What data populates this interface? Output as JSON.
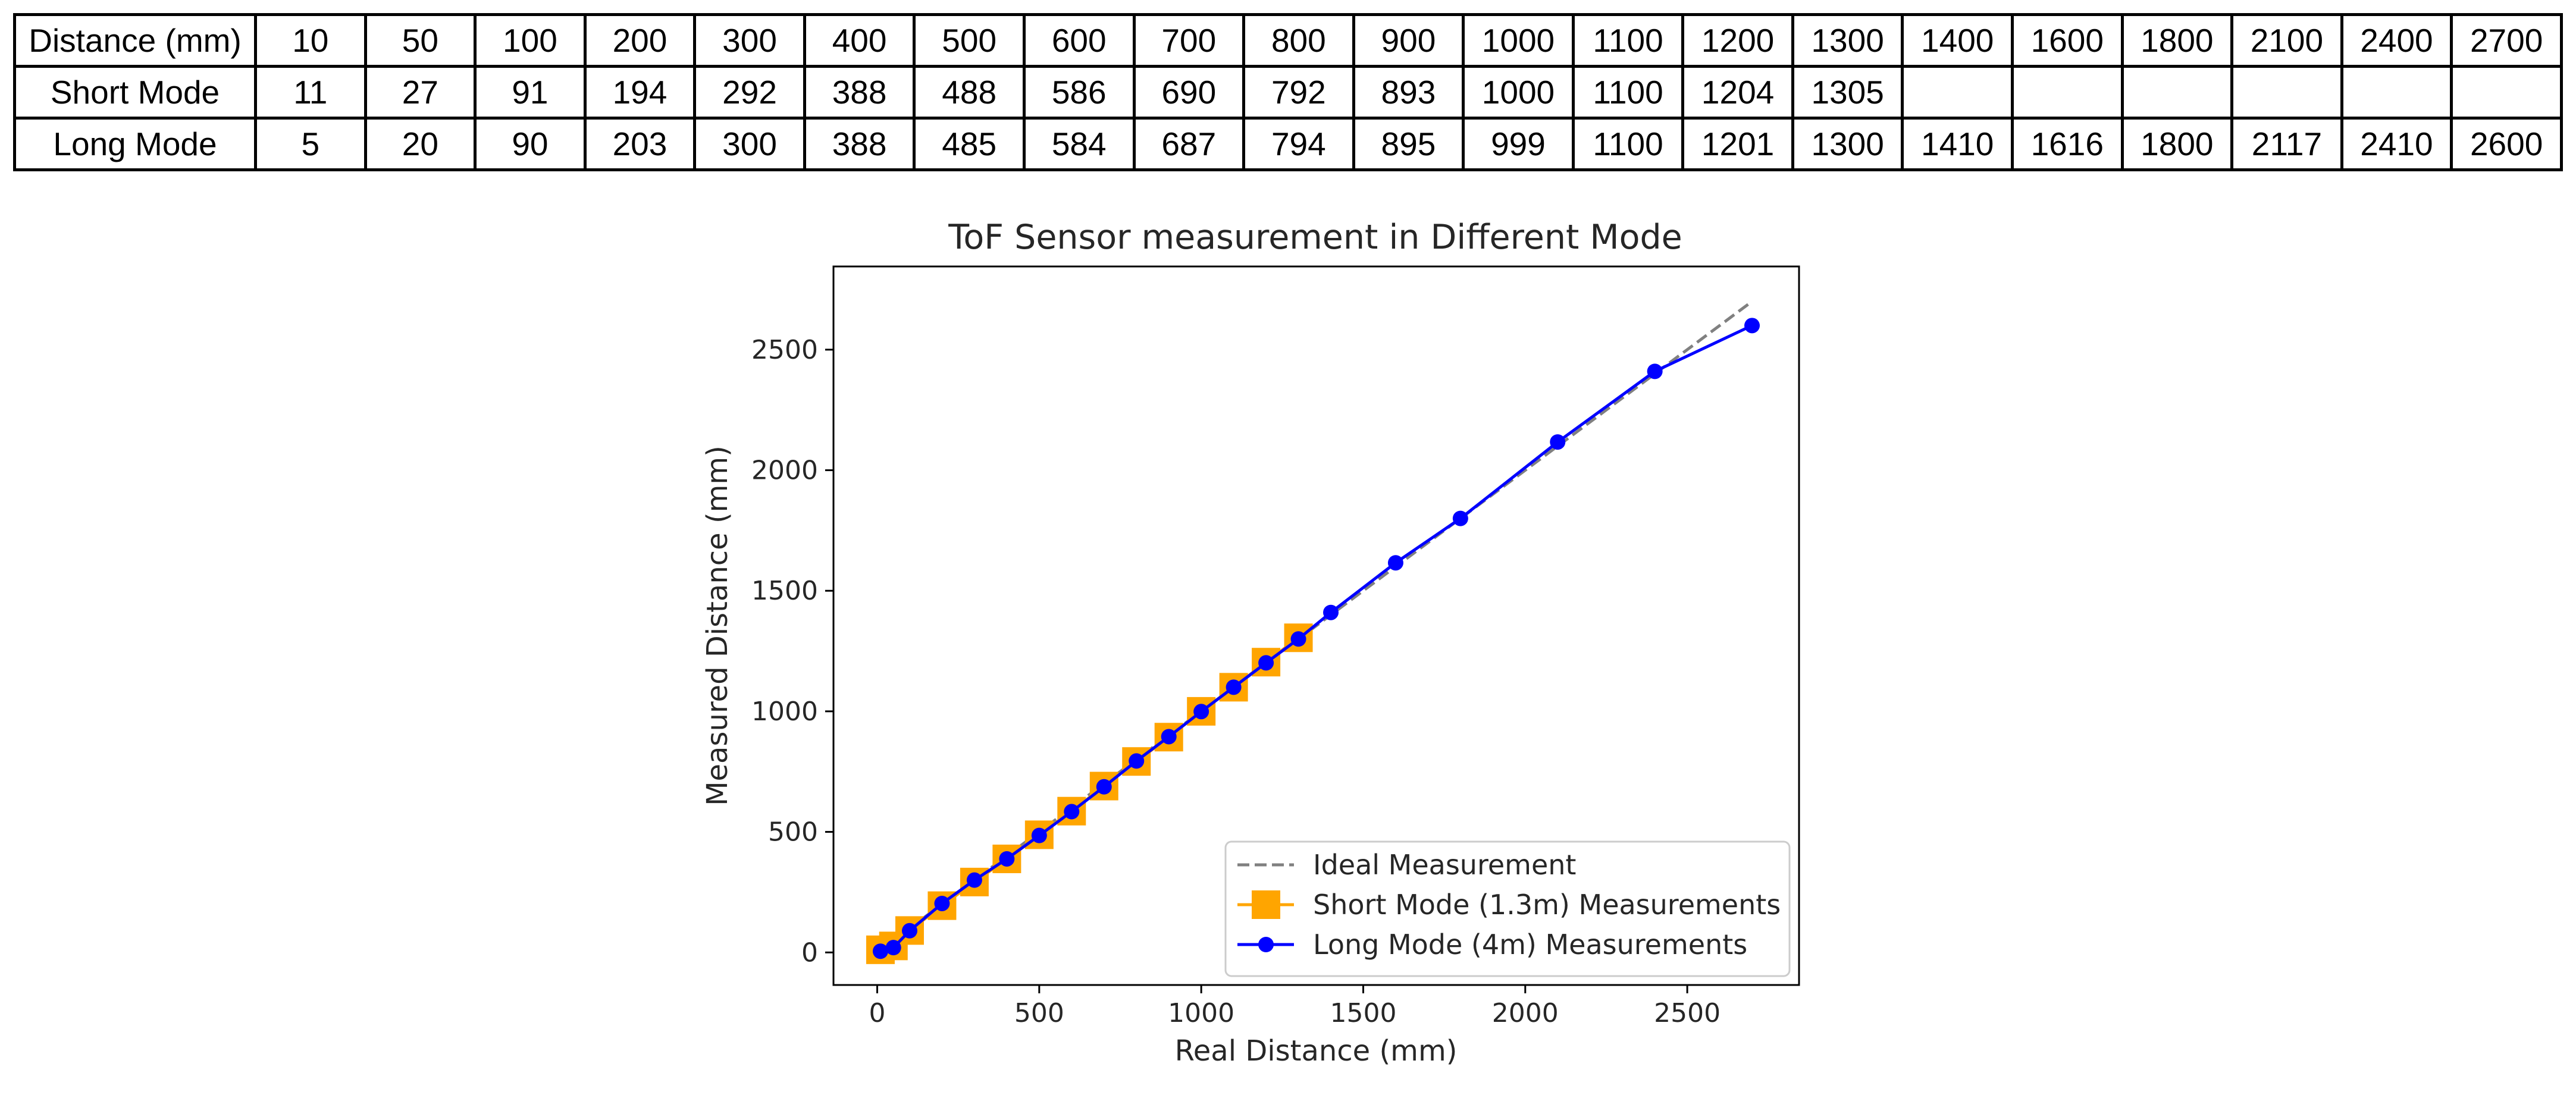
{
  "table": {
    "rows": [
      {
        "label": "Distance (mm)",
        "values": [
          "10",
          "50",
          "100",
          "200",
          "300",
          "400",
          "500",
          "600",
          "700",
          "800",
          "900",
          "1000",
          "1100",
          "1200",
          "1300",
          "1400",
          "1600",
          "1800",
          "2100",
          "2400",
          "2700"
        ]
      },
      {
        "label": "Short Mode",
        "values": [
          "11",
          "27",
          "91",
          "194",
          "292",
          "388",
          "488",
          "586",
          "690",
          "792",
          "893",
          "1000",
          "1100",
          "1204",
          "1305",
          "",
          "",
          "",
          "",
          "",
          ""
        ]
      },
      {
        "label": "Long Mode",
        "values": [
          "5",
          "20",
          "90",
          "203",
          "300",
          "388",
          "485",
          "584",
          "687",
          "794",
          "895",
          "999",
          "1100",
          "1201",
          "1300",
          "1410",
          "1616",
          "1800",
          "2117",
          "2410",
          "2600"
        ]
      }
    ]
  },
  "chart_data": {
    "type": "line",
    "title": "ToF Sensor measurement in Different Mode",
    "xlabel": "Real Distance (mm)",
    "ylabel": "Measured Distance (mm)",
    "xlim": [
      -135,
      2845
    ],
    "ylim": [
      -135,
      2845
    ],
    "xticks": [
      0,
      500,
      1000,
      1500,
      2000,
      2500
    ],
    "yticks": [
      0,
      500,
      1000,
      1500,
      2000,
      2500
    ],
    "grid": false,
    "legend_position": "lower-right",
    "series": [
      {
        "name": "Ideal Measurement",
        "style": "dashed",
        "color": "#808080",
        "x": [
          10,
          2700
        ],
        "y": [
          10,
          2700
        ]
      },
      {
        "name": "Short Mode (1.3m) Measurements",
        "style": "line-square",
        "color": "#ffa500",
        "x": [
          10,
          50,
          100,
          200,
          300,
          400,
          500,
          600,
          700,
          800,
          900,
          1000,
          1100,
          1200,
          1300
        ],
        "y": [
          11,
          27,
          91,
          194,
          292,
          388,
          488,
          586,
          690,
          792,
          893,
          1000,
          1100,
          1204,
          1305
        ]
      },
      {
        "name": "Long Mode (4m) Measurements",
        "style": "line-circle",
        "color": "#0000ff",
        "x": [
          10,
          50,
          100,
          200,
          300,
          400,
          500,
          600,
          700,
          800,
          900,
          1000,
          1100,
          1200,
          1300,
          1400,
          1600,
          1800,
          2100,
          2400,
          2700
        ],
        "y": [
          5,
          20,
          90,
          203,
          300,
          388,
          485,
          584,
          687,
          794,
          895,
          999,
          1100,
          1201,
          1300,
          1410,
          1616,
          1800,
          2117,
          2410,
          2600
        ]
      }
    ]
  }
}
